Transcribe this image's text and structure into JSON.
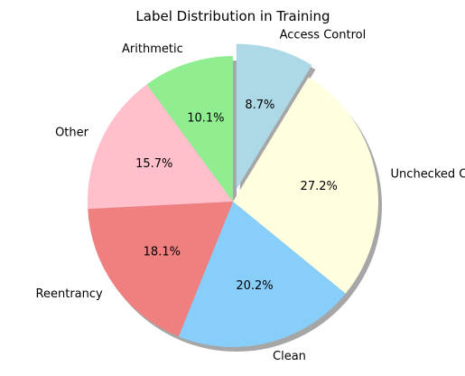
{
  "chart_data": {
    "type": "pie",
    "title": "Label Distribution in Training",
    "categories": [
      "Access Control",
      "Unchecked Calls",
      "Clean",
      "Reentrancy",
      "Other",
      "Arithmetic"
    ],
    "values": [
      8.7,
      27.2,
      20.2,
      18.1,
      15.7,
      10.1
    ],
    "value_labels": [
      "8.7%",
      "27.2%",
      "20.2%",
      "18.1%",
      "15.7%",
      "10.1%"
    ],
    "colors": [
      "#add8e6",
      "#ffffe0",
      "#87cefa",
      "#f08080",
      "#ffc0cb",
      "#90ee90"
    ],
    "exploded": [
      "Access Control"
    ],
    "start_angle": 90,
    "direction": "clockwise",
    "shadow": true,
    "legend": "none"
  }
}
